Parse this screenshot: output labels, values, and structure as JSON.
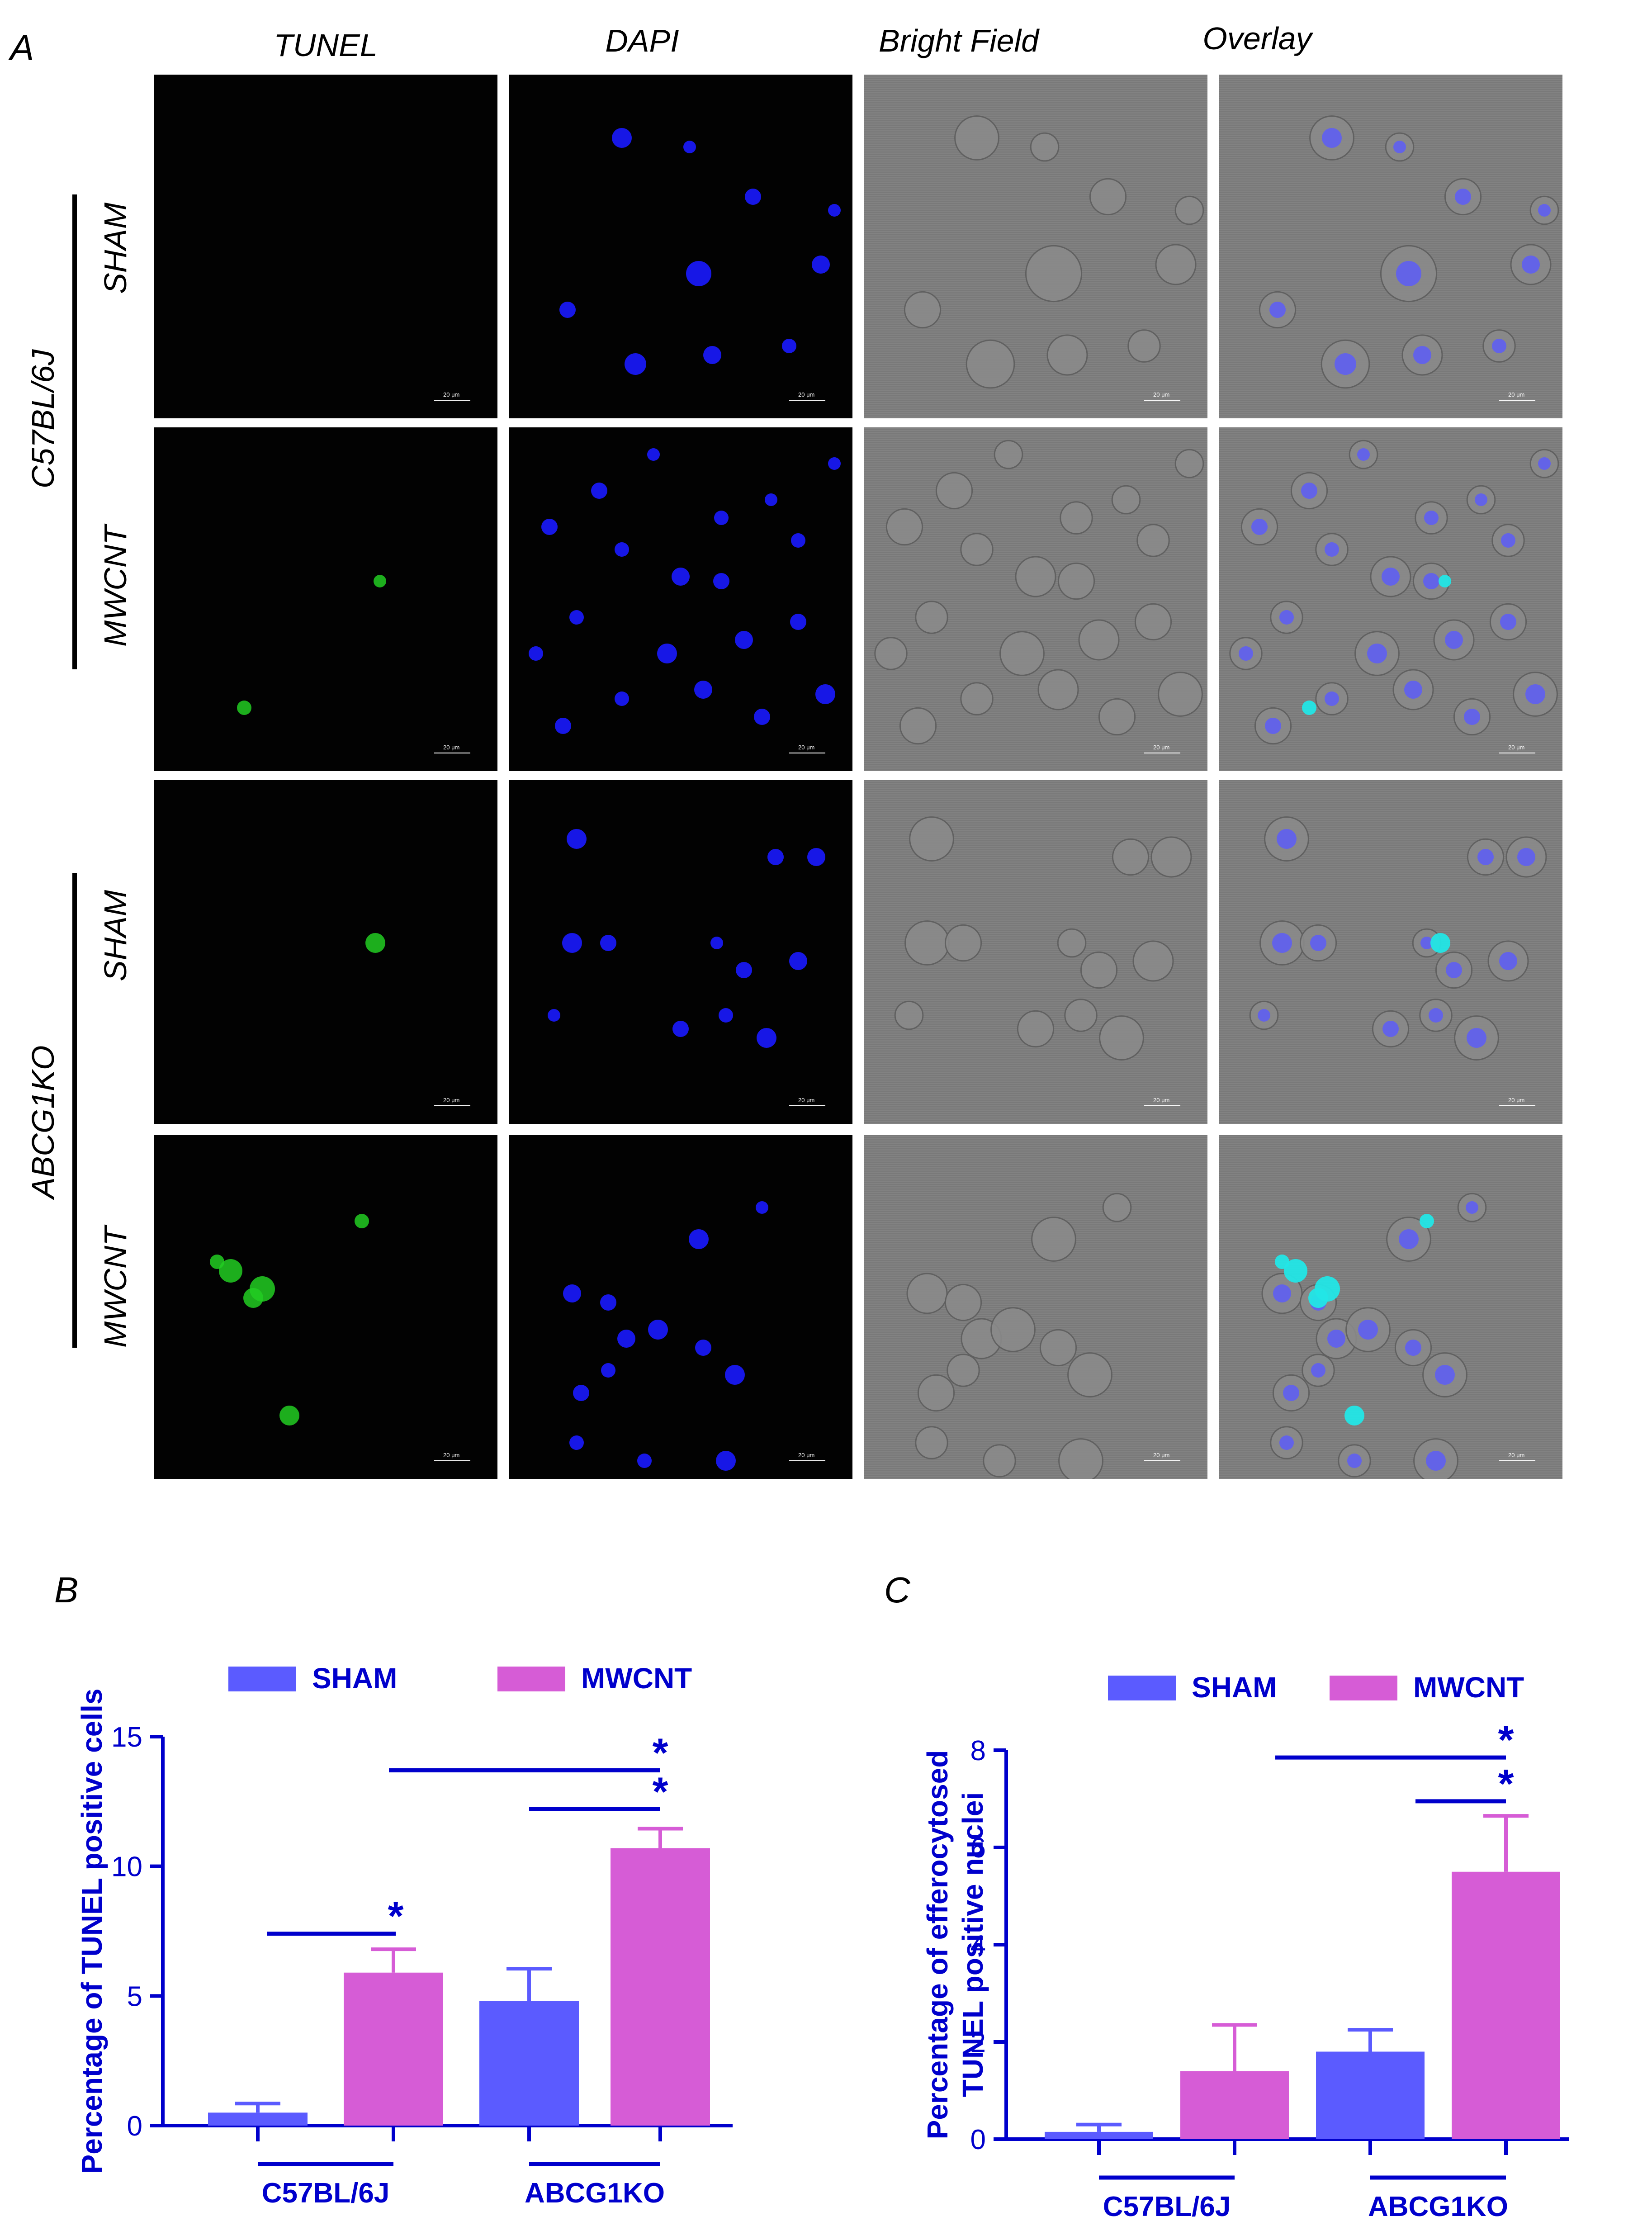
{
  "panelA": {
    "letter": "A",
    "columns": [
      "TUNEL",
      "DAPI",
      "Bright Field",
      "Overlay"
    ],
    "groups": [
      "C57BL/6J",
      "ABCG1KO"
    ],
    "rows": [
      "SHAM",
      "MWCNT",
      "SHAM",
      "MWCNT"
    ],
    "scalebar": "20 μm",
    "colors": {
      "tunel": "#22cc22",
      "dapi": "#1a1aff",
      "bright_field": "#7d7d7d",
      "overlay_tunel": "#22e6e6"
    }
  },
  "chart_data": [
    {
      "letter": "B",
      "type": "bar",
      "ylabel": "Percentage of TUNEL positive cells",
      "categories": [
        "C57BL/6J",
        "ABCG1KO"
      ],
      "series": [
        {
          "name": "SHAM",
          "color": "#5b5bff",
          "values": [
            0.5,
            4.8
          ],
          "errors": [
            0.35,
            1.25
          ]
        },
        {
          "name": "MWCNT",
          "color": "#d65cd6",
          "values": [
            5.9,
            10.7
          ],
          "errors": [
            0.9,
            0.75
          ]
        }
      ],
      "ylim": [
        0,
        15
      ],
      "yticks": [
        0,
        5,
        10,
        15
      ],
      "legend": "top",
      "significance": [
        "*",
        "*",
        "*"
      ]
    },
    {
      "letter": "C",
      "type": "bar",
      "ylabel": [
        "Percentage of efferocytosed",
        "TUNEL positive nuclei"
      ],
      "categories": [
        "C57BL/6J",
        "ABCG1KO"
      ],
      "series": [
        {
          "name": "SHAM",
          "color": "#5b5bff",
          "values": [
            0.15,
            1.8
          ],
          "errors": [
            0.15,
            0.45
          ]
        },
        {
          "name": "MWCNT",
          "color": "#d65cd6",
          "values": [
            1.4,
            5.5
          ],
          "errors": [
            0.95,
            1.15
          ]
        }
      ],
      "ylim": [
        0,
        8
      ],
      "yticks": [
        0,
        2,
        4,
        6,
        8
      ],
      "legend": "top",
      "significance": [
        "*",
        "*"
      ]
    }
  ]
}
